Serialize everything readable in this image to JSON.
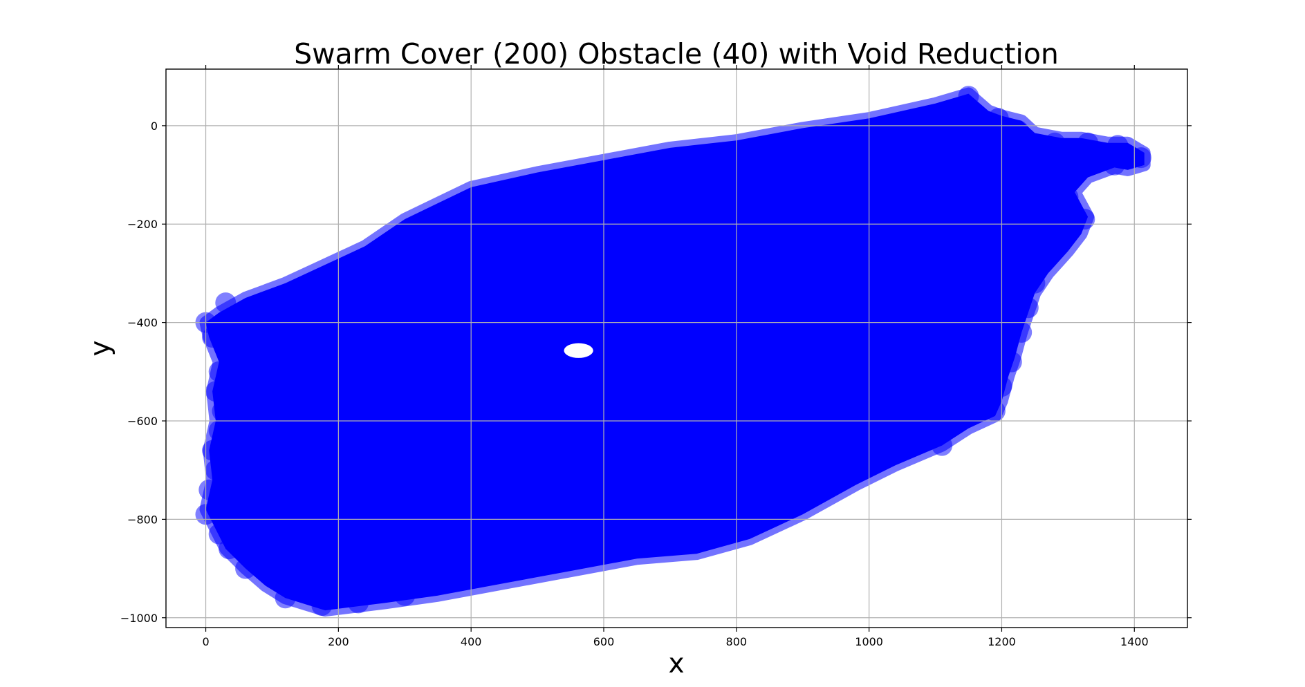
{
  "chart_data": {
    "type": "scatter",
    "title": "Swarm Cover (200) Obstacle (40) with Void Reduction",
    "xlabel": "x",
    "ylabel": "y",
    "xlim": [
      -60,
      1480
    ],
    "ylim": [
      -1020,
      115
    ],
    "xticks": [
      0,
      200,
      400,
      600,
      800,
      1000,
      1200,
      1400
    ],
    "yticks": [
      0,
      -200,
      -400,
      -600,
      -800,
      -1000
    ],
    "xtick_labels": [
      "0",
      "200",
      "400",
      "600",
      "800",
      "1000",
      "1200",
      "1400"
    ],
    "ytick_labels": [
      "0",
      "−200",
      "−400",
      "−600",
      "−800",
      "−1000"
    ],
    "grid": true,
    "marker_color": "#0000ff",
    "marker_alpha": 0.5,
    "coverage_boundary": [
      [
        0,
        -400
      ],
      [
        20,
        -380
      ],
      [
        60,
        -350
      ],
      [
        120,
        -320
      ],
      [
        200,
        -270
      ],
      [
        240,
        -245
      ],
      [
        300,
        -190
      ],
      [
        400,
        -125
      ],
      [
        500,
        -95
      ],
      [
        600,
        -70
      ],
      [
        700,
        -45
      ],
      [
        800,
        -30
      ],
      [
        900,
        -5
      ],
      [
        1000,
        15
      ],
      [
        1100,
        45
      ],
      [
        1150,
        65
      ],
      [
        1180,
        30
      ],
      [
        1200,
        20
      ],
      [
        1230,
        10
      ],
      [
        1250,
        -15
      ],
      [
        1290,
        -25
      ],
      [
        1320,
        -25
      ],
      [
        1360,
        -35
      ],
      [
        1390,
        -35
      ],
      [
        1415,
        -55
      ],
      [
        1415,
        -80
      ],
      [
        1390,
        -90
      ],
      [
        1370,
        -85
      ],
      [
        1330,
        -105
      ],
      [
        1310,
        -135
      ],
      [
        1330,
        -185
      ],
      [
        1320,
        -220
      ],
      [
        1300,
        -255
      ],
      [
        1270,
        -300
      ],
      [
        1250,
        -340
      ],
      [
        1240,
        -380
      ],
      [
        1230,
        -420
      ],
      [
        1220,
        -470
      ],
      [
        1210,
        -510
      ],
      [
        1200,
        -560
      ],
      [
        1190,
        -590
      ],
      [
        1150,
        -615
      ],
      [
        1110,
        -650
      ],
      [
        1040,
        -690
      ],
      [
        980,
        -730
      ],
      [
        900,
        -790
      ],
      [
        820,
        -840
      ],
      [
        740,
        -870
      ],
      [
        650,
        -880
      ],
      [
        550,
        -905
      ],
      [
        450,
        -930
      ],
      [
        350,
        -955
      ],
      [
        270,
        -970
      ],
      [
        180,
        -985
      ],
      [
        120,
        -960
      ],
      [
        90,
        -935
      ],
      [
        60,
        -900
      ],
      [
        30,
        -860
      ],
      [
        15,
        -820
      ],
      [
        0,
        -780
      ],
      [
        10,
        -720
      ],
      [
        5,
        -660
      ],
      [
        15,
        -600
      ],
      [
        10,
        -540
      ],
      [
        20,
        -480
      ],
      [
        5,
        -430
      ]
    ],
    "void": {
      "center": [
        562,
        -457
      ],
      "radius_x": 22,
      "radius_y": 15
    },
    "swarm_markers": [
      [
        1150,
        60
      ],
      [
        1195,
        15
      ],
      [
        1225,
        -10
      ],
      [
        1280,
        -35
      ],
      [
        1330,
        -35
      ],
      [
        1375,
        -40
      ],
      [
        1410,
        -65
      ],
      [
        1370,
        -80
      ],
      [
        1300,
        -145
      ],
      [
        1325,
        -190
      ],
      [
        1290,
        -230
      ],
      [
        1250,
        -320
      ],
      [
        1240,
        -370
      ],
      [
        1230,
        -420
      ],
      [
        1215,
        -480
      ],
      [
        1200,
        -530
      ],
      [
        1190,
        -580
      ],
      [
        1110,
        -650
      ],
      [
        0,
        -400
      ],
      [
        10,
        -430
      ],
      [
        30,
        -360
      ],
      [
        20,
        -500
      ],
      [
        15,
        -540
      ],
      [
        25,
        -580
      ],
      [
        20,
        -620
      ],
      [
        10,
        -660
      ],
      [
        15,
        -700
      ],
      [
        5,
        -740
      ],
      [
        0,
        -790
      ],
      [
        20,
        -830
      ],
      [
        35,
        -860
      ],
      [
        60,
        -900
      ],
      [
        120,
        -960
      ],
      [
        175,
        -975
      ],
      [
        230,
        -970
      ],
      [
        300,
        -955
      ]
    ]
  }
}
